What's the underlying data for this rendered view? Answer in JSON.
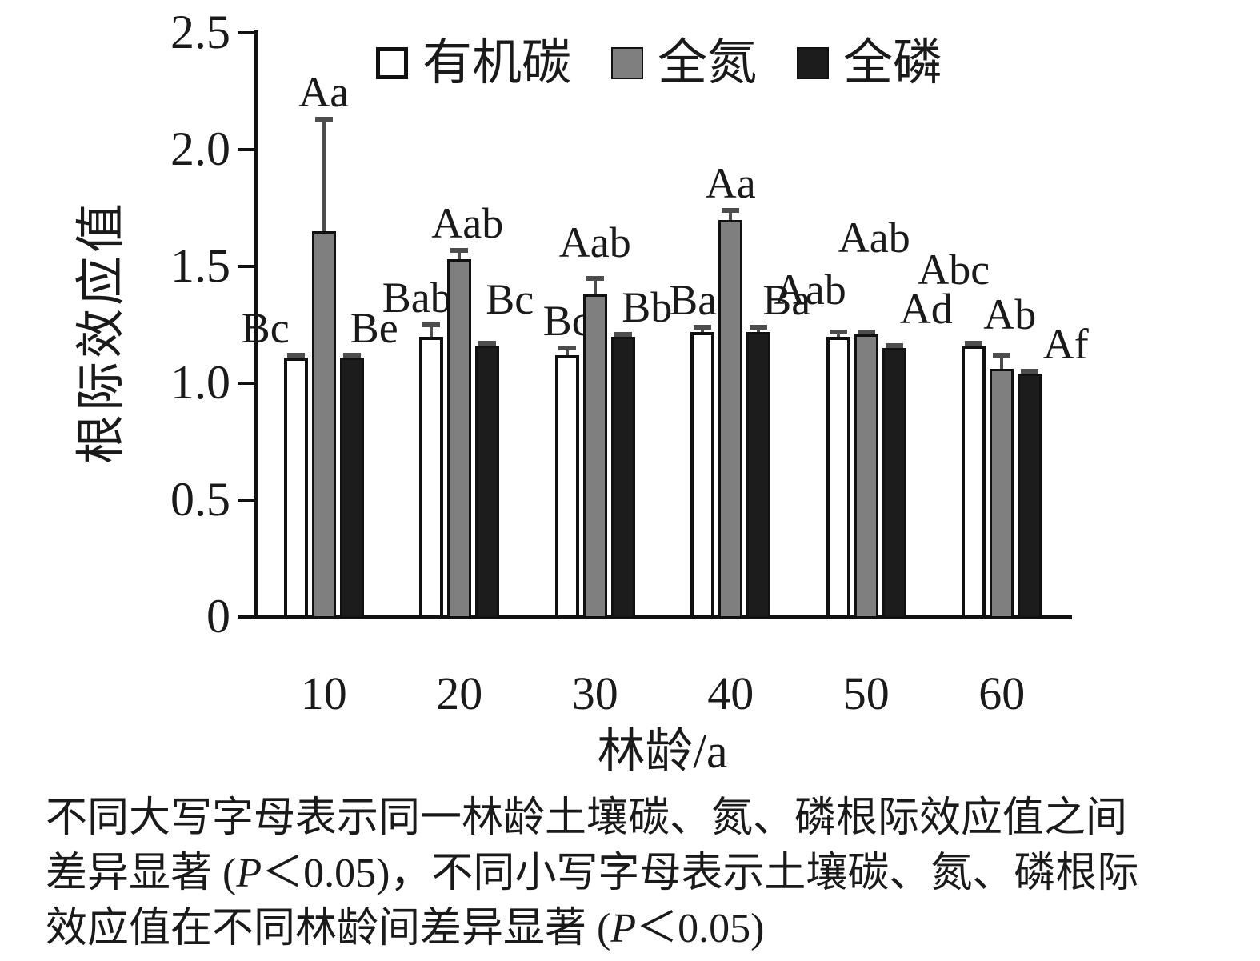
{
  "chart_data": {
    "type": "bar",
    "title": "",
    "x_label": "林龄/a",
    "y_label": "根际效应值",
    "categories": [
      "10",
      "20",
      "30",
      "40",
      "50",
      "60"
    ],
    "ylim": [
      0,
      2.5
    ],
    "y_ticks": [
      "0",
      "0.5",
      "1.0",
      "1.5",
      "2.0",
      "2.5"
    ],
    "grid": false,
    "legend_position": "top-center",
    "series": [
      {
        "name": "有机碳",
        "fill": "#ffffff",
        "border": "#111111",
        "values": [
          1.11,
          1.2,
          1.12,
          1.22,
          1.2,
          1.16
        ],
        "errors": [
          0.01,
          0.05,
          0.03,
          0.02,
          0.02,
          0.01
        ],
        "letters": [
          "Bc",
          "Bab",
          "Bc",
          "Ba",
          "Aab",
          "Abc"
        ]
      },
      {
        "name": "全氮",
        "fill": "#7f7f7f",
        "border": "#111111",
        "values": [
          1.65,
          1.53,
          1.38,
          1.7,
          1.21,
          1.06
        ],
        "errors": [
          0.48,
          0.04,
          0.07,
          0.04,
          0.01,
          0.06
        ],
        "letters": [
          "Aa",
          "Aab",
          "Aab",
          "Aa",
          "Aab",
          "Ab"
        ]
      },
      {
        "name": "全磷",
        "fill": "#1c1c1c",
        "border": "#111111",
        "values": [
          1.11,
          1.16,
          1.2,
          1.22,
          1.15,
          1.04
        ],
        "errors": [
          0.01,
          0.01,
          0.01,
          0.02,
          0.01,
          0.01
        ],
        "letters": [
          "Be",
          "Bc",
          "Bb",
          "Ba",
          "Ad",
          "Af"
        ]
      }
    ],
    "error_bar_color": "#4d4d4d",
    "layout_hints": {
      "letter_dx": [
        [
          -38,
          -18,
          0,
          -12,
          -35,
          -25
        ],
        [
          0,
          10,
          0,
          0,
          10,
          10
        ],
        [
          28,
          28,
          30,
          35,
          40,
          45
        ]
      ],
      "letter_dy": [
        [
          0,
          0,
          0,
          0,
          -19,
          -58
        ],
        [
          0,
          0,
          -11,
          0,
          -84,
          -17
        ],
        [
          0,
          -21,
          0,
          0,
          -12,
          0
        ]
      ]
    }
  },
  "caption": {
    "lines": [
      "不同大写字母表示同一林龄土壤碳、氮、磷根际效应值之间",
      "差异显著 (P＜0.05)，不同小写字母表示土壤碳、氮、磷根际",
      "效应值在不同林龄间差异显著 (P＜0.05)"
    ]
  }
}
